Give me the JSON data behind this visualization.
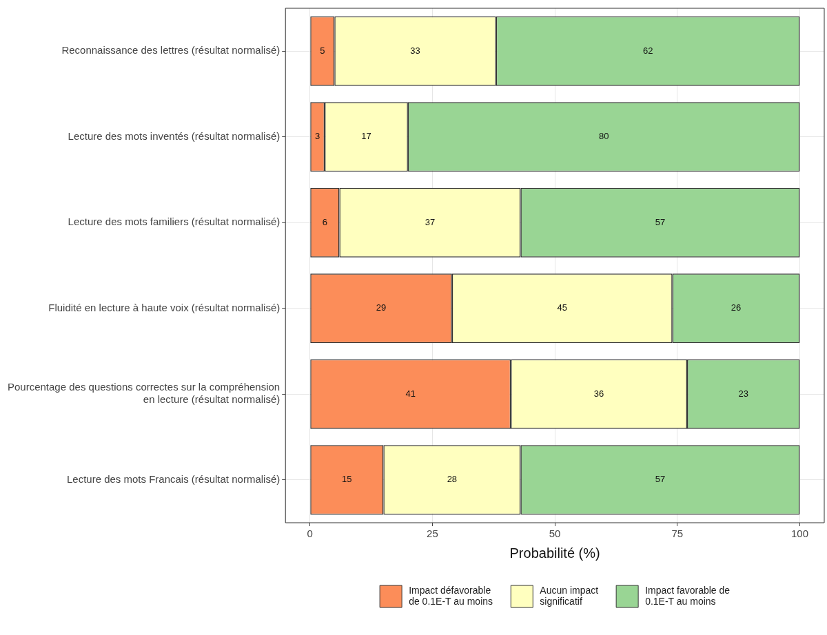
{
  "chart_data": {
    "type": "bar",
    "orientation": "horizontal",
    "stacked": true,
    "categories": [
      "Reconnaissance des lettres (résultat normalisé)",
      "Lecture des mots inventés (résultat normalisé)",
      "Lecture des mots familiers (résultat normalisé)",
      "Fluidité en lecture à haute voix (résultat normalisé)",
      "Pourcentage des questions correctes sur la compréhension en lecture (résultat normalisé)",
      "Lecture des mots Francais (résultat normalisé)"
    ],
    "series": [
      {
        "name": "Impact défavorable de 0.1E-T au moins",
        "color": "#fc8d59",
        "values": [
          5,
          3,
          6,
          29,
          41,
          15
        ]
      },
      {
        "name": "Aucun impact significatif",
        "color": "#ffffbf",
        "values": [
          33,
          17,
          37,
          45,
          36,
          28
        ]
      },
      {
        "name": "Impact favorable de 0.1E-T au moins",
        "color": "#99d594",
        "values": [
          62,
          80,
          57,
          26,
          23,
          57
        ]
      }
    ],
    "xlabel": "Probabilité (%)",
    "xlim": [
      -5,
      105
    ],
    "xticks": [
      0,
      25,
      50,
      75,
      100
    ],
    "grid": true,
    "legend": "bottom",
    "data_labels": true
  }
}
